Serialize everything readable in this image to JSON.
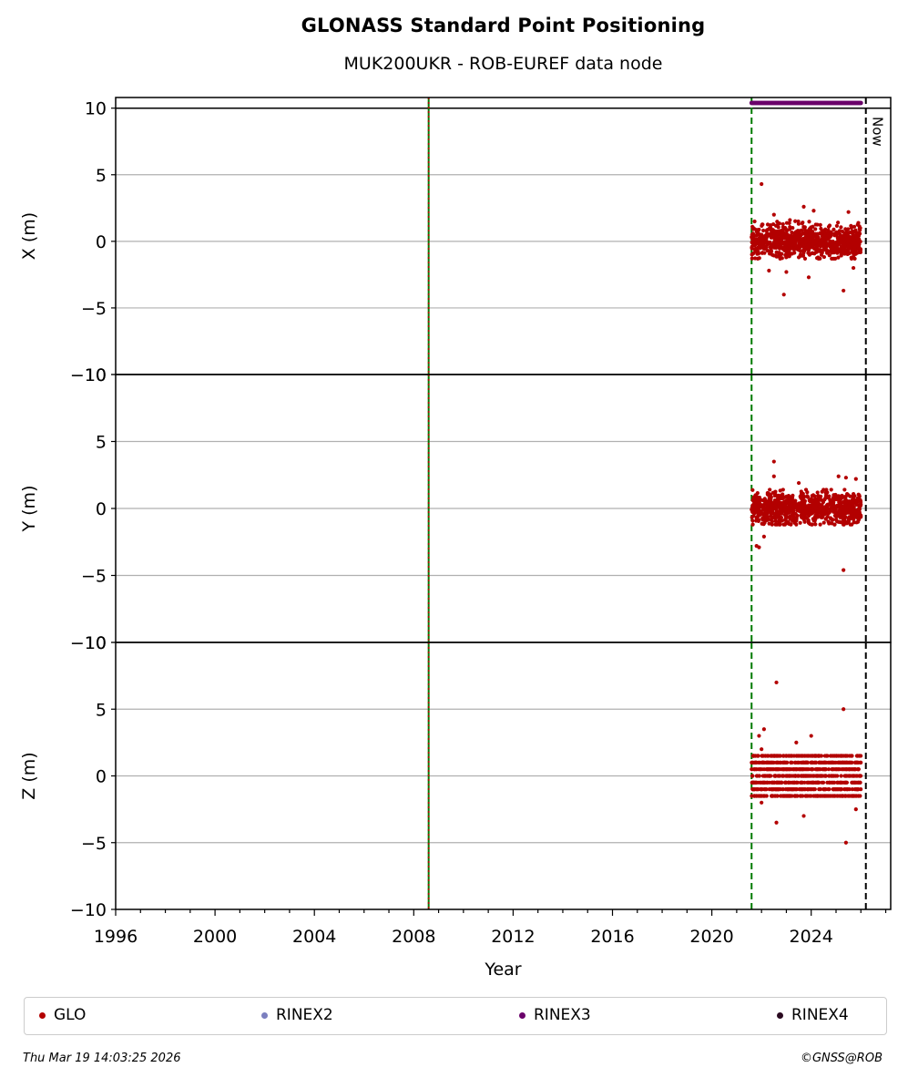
{
  "title": "GLONASS Standard Point Positioning",
  "subtitle": "MUK200UKR - ROB-EUREF data node",
  "footer": {
    "timestamp": "Thu Mar 19 14:03:25 2026",
    "credit": "©GNSS@ROB"
  },
  "colors": {
    "GLO": "#b30000",
    "RINEX2": "#7b7fbf",
    "RINEX3": "#6a006a",
    "RINEX4": "#2a0a20",
    "start_line": "#007a00",
    "now_line": "#000000"
  },
  "chart_data": {
    "type": "scatter",
    "xlabel": "Year",
    "xlim": [
      1996,
      2027.2
    ],
    "x_ticks": [
      "1996",
      "2000",
      "2004",
      "2008",
      "2012",
      "2016",
      "2020",
      "2024"
    ],
    "now_label": "Now",
    "now_year": 2026.2,
    "rinex3_range": [
      2021.6,
      2026.0
    ],
    "vertical_lines": [
      {
        "year": 2008.6,
        "style": "solid-green-dotted-red"
      },
      {
        "year": 2021.6,
        "style": "dashed-green"
      }
    ],
    "panels": [
      {
        "ylabel": "X (m)",
        "ylim": [
          -10,
          10.8
        ],
        "y_ticks": [
          "10",
          "5",
          "0",
          "−5",
          "−10"
        ],
        "data_range": [
          2021.6,
          2026.0
        ],
        "band": [
          -1.3,
          1.6
        ],
        "outliers": [
          [
            2022.0,
            4.3
          ],
          [
            2022.9,
            -4.0
          ],
          [
            2022.5,
            2.0
          ],
          [
            2023.7,
            2.6
          ],
          [
            2023.9,
            -2.7
          ],
          [
            2025.3,
            -3.7
          ],
          [
            2025.5,
            2.2
          ],
          [
            2025.7,
            -2.0
          ],
          [
            2024.1,
            2.3
          ],
          [
            2022.3,
            -2.2
          ],
          [
            2023.0,
            -2.3
          ]
        ]
      },
      {
        "ylabel": "Y (m)",
        "ylim": [
          -10,
          10
        ],
        "y_ticks": [
          "10",
          "5",
          "0",
          "−5",
          "−10"
        ],
        "data_range": [
          2021.6,
          2026.0
        ],
        "band": [
          -1.2,
          1.4
        ],
        "outliers": [
          [
            2022.5,
            3.5
          ],
          [
            2022.5,
            2.4
          ],
          [
            2021.9,
            -2.9
          ],
          [
            2022.1,
            -2.1
          ],
          [
            2025.3,
            -4.6
          ],
          [
            2025.1,
            2.4
          ],
          [
            2025.4,
            2.3
          ],
          [
            2023.5,
            1.9
          ],
          [
            2021.8,
            -2.8
          ],
          [
            2025.8,
            2.2
          ]
        ]
      },
      {
        "ylabel": "Z (m)",
        "ylim": [
          -10,
          10
        ],
        "y_ticks": [
          "10",
          "5",
          "0",
          "−5",
          "−10"
        ],
        "data_range": [
          2021.6,
          2026.0
        ],
        "band": [
          -1.5,
          1.5
        ],
        "levels": [
          -1.5,
          -1.0,
          -0.5,
          0.0,
          0.5,
          1.0,
          1.5
        ],
        "outliers": [
          [
            2022.6,
            7.0
          ],
          [
            2025.3,
            5.0
          ],
          [
            2022.1,
            3.5
          ],
          [
            2021.9,
            3.0
          ],
          [
            2023.4,
            2.5
          ],
          [
            2024.0,
            3.0
          ],
          [
            2022.6,
            -3.5
          ],
          [
            2023.7,
            -3.0
          ],
          [
            2025.4,
            -5.0
          ],
          [
            2025.8,
            -2.5
          ],
          [
            2022.0,
            2.0
          ],
          [
            2022.0,
            -2.0
          ]
        ]
      }
    ],
    "legend": [
      "GLO",
      "RINEX2",
      "RINEX3",
      "RINEX4"
    ]
  }
}
